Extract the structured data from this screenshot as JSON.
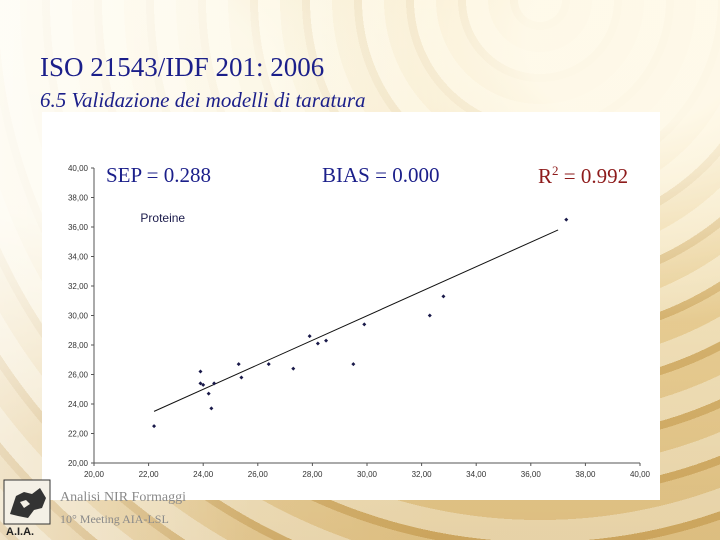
{
  "slide": {
    "title": "ISO 21543/IDF 201: 2006",
    "subtitle": "6.5  Validazione dei modelli di taratura",
    "stats": {
      "sep": "SEP = 0.288",
      "bias": "BIAS = 0.000",
      "r2_prefix": "R",
      "r2_sup": "2",
      "r2_value": " = 0.992"
    },
    "footer": {
      "line1": "Analisi NIR Formaggi",
      "line2": "10° Meeting AIA-LSL"
    },
    "logo_text": "A.I.A."
  },
  "chart_data": {
    "type": "scatter",
    "title": "Proteine",
    "xlabel": "",
    "ylabel": "",
    "xlim": [
      20,
      40
    ],
    "ylim": [
      20,
      40
    ],
    "xticks": [
      "20,00",
      "22,00",
      "24,00",
      "26,00",
      "28,00",
      "30,00",
      "32,00",
      "34,00",
      "36,00",
      "38,00",
      "40,00"
    ],
    "yticks": [
      "20,00",
      "22,00",
      "24,00",
      "26,00",
      "28,00",
      "30,00",
      "32,00",
      "34,00",
      "36,00",
      "38,00",
      "40,00"
    ],
    "grid": false,
    "colors": {
      "points": "#1a1a4a",
      "line": "#111111",
      "axis": "#555555",
      "ticks": "#333333"
    },
    "series": [
      {
        "points": [
          [
            22.2,
            22.5
          ],
          [
            23.9,
            26.2
          ],
          [
            23.9,
            25.4
          ],
          [
            24.0,
            25.3
          ],
          [
            24.2,
            24.7
          ],
          [
            24.3,
            23.7
          ],
          [
            24.4,
            25.4
          ],
          [
            25.3,
            26.7
          ],
          [
            25.4,
            25.8
          ],
          [
            26.4,
            26.7
          ],
          [
            27.3,
            26.4
          ],
          [
            27.9,
            28.6
          ],
          [
            28.2,
            28.1
          ],
          [
            28.5,
            28.3
          ],
          [
            29.5,
            26.7
          ],
          [
            29.9,
            29.4
          ],
          [
            32.3,
            30.0
          ],
          [
            32.8,
            31.3
          ],
          [
            37.3,
            36.5
          ]
        ]
      }
    ],
    "regression": {
      "from": [
        22.2,
        23.5
      ],
      "to": [
        37.0,
        35.8
      ]
    }
  }
}
